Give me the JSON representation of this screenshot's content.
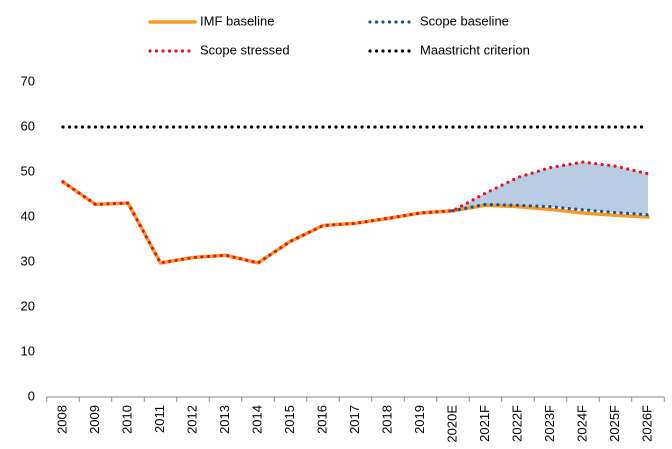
{
  "chart_data": {
    "type": "line",
    "categories": [
      "2008",
      "2009",
      "2010",
      "2011",
      "2012",
      "2013",
      "2014",
      "2015",
      "2016",
      "2017",
      "2018",
      "2019",
      "2020E",
      "2021F",
      "2022F",
      "2023F",
      "2024F",
      "2025F",
      "2026F"
    ],
    "series": [
      {
        "name": "IMF baseline",
        "color": "#f39c26",
        "style": "solid",
        "values": [
          47.8,
          42.8,
          43.1,
          29.8,
          31.0,
          31.5,
          29.8,
          34.6,
          38.1,
          38.6,
          39.7,
          40.9,
          41.4,
          42.6,
          42.3,
          41.7,
          40.9,
          40.4,
          40.0
        ]
      },
      {
        "name": "Scope baseline",
        "color": "#1f4e96",
        "style": "dotted",
        "values": [
          null,
          null,
          null,
          null,
          null,
          null,
          null,
          null,
          null,
          null,
          null,
          null,
          41.4,
          42.8,
          42.6,
          42.3,
          41.6,
          41.0,
          40.5
        ]
      },
      {
        "name": "Scope stressed",
        "color": "#e8111b",
        "style": "dotted",
        "values": [
          47.8,
          42.8,
          43.1,
          29.8,
          31.0,
          31.5,
          29.8,
          34.6,
          38.1,
          38.6,
          39.7,
          40.9,
          41.4,
          45.3,
          48.8,
          51.0,
          52.2,
          51.3,
          49.6
        ]
      },
      {
        "name": "Maastricht criterion",
        "color": "#000000",
        "style": "dotted",
        "values": [
          60,
          60,
          60,
          60,
          60,
          60,
          60,
          60,
          60,
          60,
          60,
          60,
          60,
          60,
          60,
          60,
          60,
          60,
          60
        ]
      }
    ],
    "band": {
      "between": [
        1,
        2
      ],
      "color": "#b8cce4"
    },
    "ylim": [
      0,
      70
    ],
    "yticks": [
      0,
      10,
      20,
      30,
      40,
      50,
      60,
      70
    ],
    "grid": false
  }
}
